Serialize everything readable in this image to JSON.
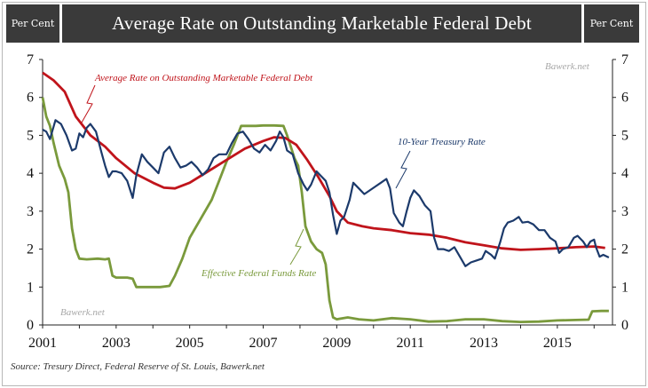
{
  "header": {
    "left_label": "Per Cent",
    "title": "Average Rate on Outstanding Marketable Federal Debt",
    "right_label": "Per Cent"
  },
  "watermark": "Bawerk.net",
  "source": "Source: Tresury Direct, Federal Reserve of St. Louis, Bawerk.net",
  "chart_data": {
    "type": "line",
    "title": "Average Rate on Outstanding Marketable Federal Debt",
    "xlabel": "",
    "ylabel": "Per Cent",
    "xlim": [
      2001,
      2016.5
    ],
    "ylim": [
      0,
      7
    ],
    "x_ticks": [
      "2001",
      "2003",
      "2005",
      "2007",
      "2009",
      "2011",
      "2013",
      "2015"
    ],
    "y_ticks": [
      "0",
      "1",
      "2",
      "3",
      "4",
      "5",
      "6",
      "7"
    ],
    "grid": false,
    "colors": {
      "debt": "#c0141b",
      "treasury": "#1c3a6b",
      "fedfunds": "#7a9a3c"
    },
    "series": [
      {
        "name": "Average Rate on Outstanding Marketable Federal Debt",
        "key": "debt",
        "points": [
          [
            2001.0,
            6.65
          ],
          [
            2001.3,
            6.45
          ],
          [
            2001.6,
            6.15
          ],
          [
            2001.9,
            5.5
          ],
          [
            2002.3,
            5.0
          ],
          [
            2002.7,
            4.7
          ],
          [
            2003.0,
            4.4
          ],
          [
            2003.5,
            4.0
          ],
          [
            2004.0,
            3.75
          ],
          [
            2004.3,
            3.62
          ],
          [
            2004.6,
            3.6
          ],
          [
            2005.0,
            3.75
          ],
          [
            2005.5,
            4.05
          ],
          [
            2006.0,
            4.35
          ],
          [
            2006.5,
            4.65
          ],
          [
            2007.0,
            4.85
          ],
          [
            2007.3,
            4.95
          ],
          [
            2007.6,
            4.93
          ],
          [
            2007.9,
            4.75
          ],
          [
            2008.2,
            4.35
          ],
          [
            2008.5,
            3.9
          ],
          [
            2008.8,
            3.4
          ],
          [
            2009.0,
            3.0
          ],
          [
            2009.3,
            2.7
          ],
          [
            2009.7,
            2.6
          ],
          [
            2010.0,
            2.55
          ],
          [
            2010.5,
            2.5
          ],
          [
            2011.0,
            2.42
          ],
          [
            2011.5,
            2.38
          ],
          [
            2012.0,
            2.3
          ],
          [
            2012.5,
            2.18
          ],
          [
            2013.0,
            2.1
          ],
          [
            2013.5,
            2.02
          ],
          [
            2014.0,
            1.98
          ],
          [
            2014.5,
            2.0
          ],
          [
            2015.0,
            2.02
          ],
          [
            2015.5,
            2.05
          ],
          [
            2016.0,
            2.07
          ],
          [
            2016.3,
            2.03
          ]
        ]
      },
      {
        "name": "10-Year Treasury Rate",
        "key": "treasury",
        "points": [
          [
            2001.0,
            5.15
          ],
          [
            2001.1,
            5.1
          ],
          [
            2001.2,
            4.9
          ],
          [
            2001.35,
            5.4
          ],
          [
            2001.5,
            5.3
          ],
          [
            2001.65,
            5.0
          ],
          [
            2001.8,
            4.6
          ],
          [
            2001.9,
            4.65
          ],
          [
            2002.0,
            5.05
          ],
          [
            2002.1,
            4.95
          ],
          [
            2002.2,
            5.2
          ],
          [
            2002.3,
            5.3
          ],
          [
            2002.45,
            5.1
          ],
          [
            2002.6,
            4.55
          ],
          [
            2002.7,
            4.2
          ],
          [
            2002.8,
            3.9
          ],
          [
            2002.9,
            4.05
          ],
          [
            2003.0,
            4.05
          ],
          [
            2003.15,
            4.0
          ],
          [
            2003.3,
            3.8
          ],
          [
            2003.45,
            3.35
          ],
          [
            2003.55,
            3.95
          ],
          [
            2003.7,
            4.5
          ],
          [
            2003.85,
            4.3
          ],
          [
            2004.0,
            4.15
          ],
          [
            2004.15,
            4.0
          ],
          [
            2004.3,
            4.55
          ],
          [
            2004.45,
            4.7
          ],
          [
            2004.6,
            4.4
          ],
          [
            2004.75,
            4.15
          ],
          [
            2004.9,
            4.2
          ],
          [
            2005.05,
            4.3
          ],
          [
            2005.2,
            4.15
          ],
          [
            2005.35,
            3.95
          ],
          [
            2005.5,
            4.1
          ],
          [
            2005.65,
            4.4
          ],
          [
            2005.8,
            4.5
          ],
          [
            2006.0,
            4.5
          ],
          [
            2006.15,
            4.8
          ],
          [
            2006.3,
            5.05
          ],
          [
            2006.45,
            5.1
          ],
          [
            2006.6,
            4.9
          ],
          [
            2006.75,
            4.65
          ],
          [
            2006.9,
            4.55
          ],
          [
            2007.05,
            4.75
          ],
          [
            2007.2,
            4.6
          ],
          [
            2007.35,
            4.85
          ],
          [
            2007.45,
            5.1
          ],
          [
            2007.55,
            4.95
          ],
          [
            2007.65,
            4.6
          ],
          [
            2007.8,
            4.5
          ],
          [
            2007.95,
            4.0
          ],
          [
            2008.1,
            3.7
          ],
          [
            2008.2,
            3.55
          ],
          [
            2008.3,
            3.7
          ],
          [
            2008.45,
            4.05
          ],
          [
            2008.55,
            3.95
          ],
          [
            2008.7,
            3.8
          ],
          [
            2008.8,
            3.5
          ],
          [
            2008.9,
            2.9
          ],
          [
            2009.0,
            2.4
          ],
          [
            2009.1,
            2.75
          ],
          [
            2009.2,
            2.85
          ],
          [
            2009.35,
            3.3
          ],
          [
            2009.45,
            3.75
          ],
          [
            2009.6,
            3.6
          ],
          [
            2009.75,
            3.45
          ],
          [
            2009.9,
            3.55
          ],
          [
            2010.05,
            3.65
          ],
          [
            2010.2,
            3.75
          ],
          [
            2010.35,
            3.85
          ],
          [
            2010.45,
            3.6
          ],
          [
            2010.55,
            2.95
          ],
          [
            2010.7,
            2.7
          ],
          [
            2010.8,
            2.6
          ],
          [
            2010.9,
            3.0
          ],
          [
            2011.0,
            3.35
          ],
          [
            2011.1,
            3.55
          ],
          [
            2011.25,
            3.4
          ],
          [
            2011.4,
            3.15
          ],
          [
            2011.55,
            3.0
          ],
          [
            2011.65,
            2.3
          ],
          [
            2011.75,
            2.0
          ],
          [
            2011.9,
            2.0
          ],
          [
            2012.05,
            1.95
          ],
          [
            2012.2,
            2.05
          ],
          [
            2012.35,
            1.8
          ],
          [
            2012.5,
            1.55
          ],
          [
            2012.65,
            1.65
          ],
          [
            2012.8,
            1.7
          ],
          [
            2012.95,
            1.75
          ],
          [
            2013.05,
            1.95
          ],
          [
            2013.2,
            1.85
          ],
          [
            2013.3,
            1.75
          ],
          [
            2013.45,
            2.2
          ],
          [
            2013.55,
            2.55
          ],
          [
            2013.65,
            2.7
          ],
          [
            2013.8,
            2.75
          ],
          [
            2013.95,
            2.85
          ],
          [
            2014.05,
            2.7
          ],
          [
            2014.2,
            2.72
          ],
          [
            2014.35,
            2.65
          ],
          [
            2014.5,
            2.5
          ],
          [
            2014.65,
            2.5
          ],
          [
            2014.8,
            2.3
          ],
          [
            2014.95,
            2.2
          ],
          [
            2015.05,
            1.9
          ],
          [
            2015.15,
            2.0
          ],
          [
            2015.3,
            2.05
          ],
          [
            2015.45,
            2.3
          ],
          [
            2015.55,
            2.35
          ],
          [
            2015.7,
            2.2
          ],
          [
            2015.8,
            2.05
          ],
          [
            2015.9,
            2.2
          ],
          [
            2016.0,
            2.25
          ],
          [
            2016.05,
            2.05
          ],
          [
            2016.15,
            1.8
          ],
          [
            2016.25,
            1.85
          ],
          [
            2016.4,
            1.78
          ]
        ]
      },
      {
        "name": "Effective Federal Funds Rate",
        "key": "fedfunds",
        "points": [
          [
            2001.0,
            6.0
          ],
          [
            2001.1,
            5.5
          ],
          [
            2001.2,
            5.25
          ],
          [
            2001.3,
            4.8
          ],
          [
            2001.45,
            4.2
          ],
          [
            2001.6,
            3.85
          ],
          [
            2001.7,
            3.5
          ],
          [
            2001.8,
            2.55
          ],
          [
            2001.9,
            2.0
          ],
          [
            2002.0,
            1.75
          ],
          [
            2002.2,
            1.73
          ],
          [
            2002.5,
            1.75
          ],
          [
            2002.7,
            1.73
          ],
          [
            2002.8,
            1.75
          ],
          [
            2002.9,
            1.3
          ],
          [
            2003.0,
            1.25
          ],
          [
            2003.3,
            1.25
          ],
          [
            2003.45,
            1.22
          ],
          [
            2003.55,
            1.0
          ],
          [
            2003.8,
            1.0
          ],
          [
            2004.0,
            1.0
          ],
          [
            2004.2,
            1.0
          ],
          [
            2004.45,
            1.03
          ],
          [
            2004.6,
            1.3
          ],
          [
            2004.8,
            1.75
          ],
          [
            2005.0,
            2.3
          ],
          [
            2005.3,
            2.8
          ],
          [
            2005.6,
            3.3
          ],
          [
            2005.8,
            3.8
          ],
          [
            2006.0,
            4.3
          ],
          [
            2006.2,
            4.75
          ],
          [
            2006.4,
            5.25
          ],
          [
            2006.6,
            5.25
          ],
          [
            2006.8,
            5.25
          ],
          [
            2007.0,
            5.26
          ],
          [
            2007.3,
            5.26
          ],
          [
            2007.55,
            5.25
          ],
          [
            2007.65,
            5.0
          ],
          [
            2007.75,
            4.7
          ],
          [
            2007.85,
            4.4
          ],
          [
            2007.95,
            4.2
          ],
          [
            2008.05,
            3.5
          ],
          [
            2008.15,
            2.6
          ],
          [
            2008.3,
            2.2
          ],
          [
            2008.45,
            2.0
          ],
          [
            2008.6,
            1.9
          ],
          [
            2008.7,
            1.6
          ],
          [
            2008.8,
            0.65
          ],
          [
            2008.9,
            0.2
          ],
          [
            2009.0,
            0.15
          ],
          [
            2009.3,
            0.2
          ],
          [
            2009.6,
            0.15
          ],
          [
            2010.0,
            0.12
          ],
          [
            2010.5,
            0.18
          ],
          [
            2011.0,
            0.15
          ],
          [
            2011.5,
            0.09
          ],
          [
            2012.0,
            0.1
          ],
          [
            2012.5,
            0.15
          ],
          [
            2013.0,
            0.15
          ],
          [
            2013.5,
            0.1
          ],
          [
            2014.0,
            0.08
          ],
          [
            2014.5,
            0.09
          ],
          [
            2015.0,
            0.12
          ],
          [
            2015.5,
            0.13
          ],
          [
            2015.85,
            0.14
          ],
          [
            2015.95,
            0.36
          ],
          [
            2016.2,
            0.37
          ],
          [
            2016.4,
            0.37
          ]
        ]
      }
    ],
    "annotations": [
      {
        "text": "Average  Rate  on  Outstanding  Marketable  Federal  Debt",
        "series": "debt"
      },
      {
        "text": "10-Year Treasury Rate",
        "series": "treasury"
      },
      {
        "text": "Effective Federal Funds Rate",
        "series": "fedfunds"
      }
    ]
  }
}
